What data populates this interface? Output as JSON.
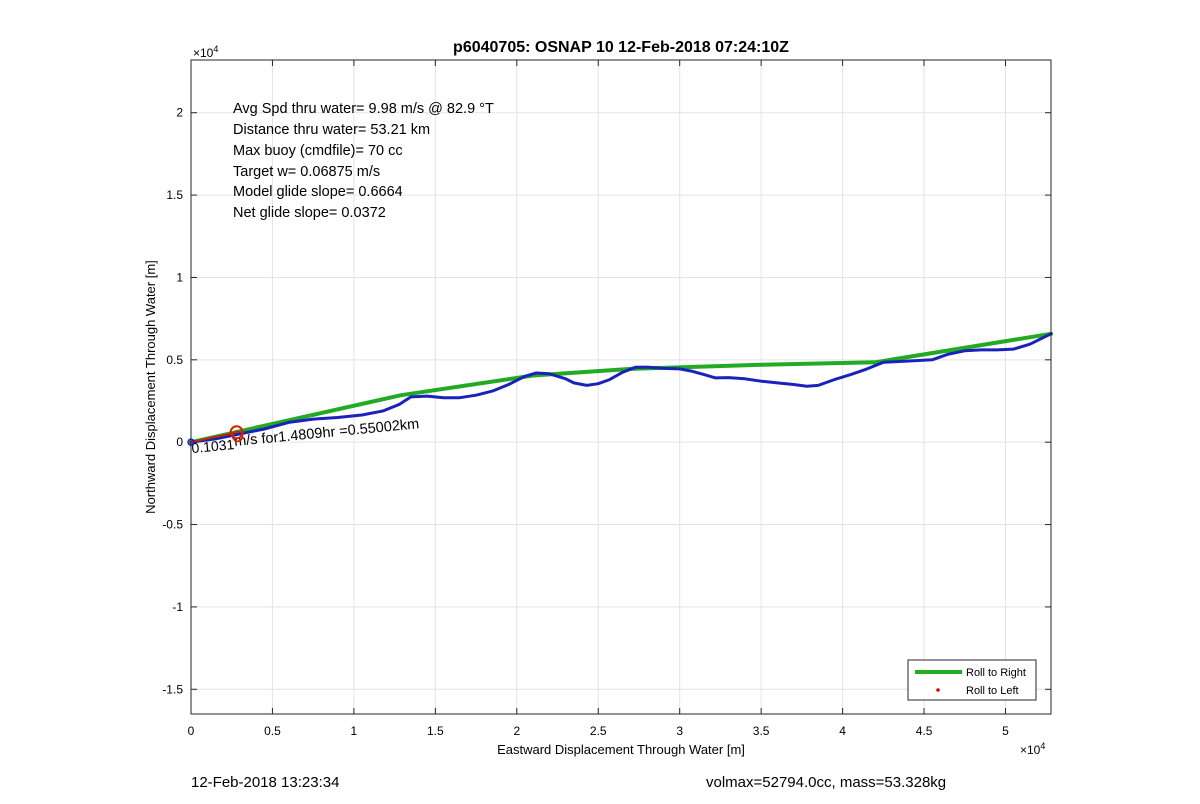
{
  "chart_data": {
    "type": "line",
    "title": "p6040705: OSNAP 10 12-Feb-2018 07:24:10Z",
    "xlabel": "Eastward Displacement Through Water [m]",
    "ylabel": "Northward Displacement Through Water [m]",
    "xlim": [
      0,
      52794
    ],
    "ylim": [
      -16500,
      23200
    ],
    "x_exponent_label": "×10",
    "x_exponent": "4",
    "y_exponent_label": "×10",
    "y_exponent": "4",
    "xticks": [
      0,
      5000,
      10000,
      15000,
      20000,
      25000,
      30000,
      35000,
      40000,
      45000,
      50000
    ],
    "xtick_labels": [
      "0",
      "0.5",
      "1",
      "1.5",
      "2",
      "2.5",
      "3",
      "3.5",
      "4",
      "4.5",
      "5"
    ],
    "yticks": [
      -15000,
      -10000,
      -5000,
      0,
      5000,
      10000,
      15000,
      20000
    ],
    "ytick_labels": [
      "-1.5",
      "-1",
      "-0.5",
      "0",
      "0.5",
      "1",
      "1.5",
      "2"
    ],
    "grid": true,
    "legend_position": "bottom-right",
    "series": [
      {
        "name": "Roll to Right",
        "color": "#22aa22",
        "x": [
          0,
          12900,
          21000,
          27000,
          35000,
          42000,
          52794
        ],
        "y": [
          0,
          2850,
          4050,
          4450,
          4700,
          4850,
          6580
        ]
      },
      {
        "name": "Roll to Left",
        "color": "#dd0000",
        "x": [],
        "y": []
      },
      {
        "color": "#1a22bb",
        "x": [
          0,
          1500,
          3000,
          4500,
          6000,
          7500,
          9000,
          10500,
          11800,
          12800,
          13500,
          14500,
          15500,
          16500,
          17500,
          18500,
          19500,
          20500,
          21200,
          22000,
          23000,
          23500,
          24300,
          25000,
          25700,
          26500,
          27300,
          28000,
          29000,
          30000,
          30800,
          31500,
          32200,
          33000,
          34000,
          35000,
          36000,
          37000,
          37800,
          38500,
          39500,
          40500,
          41500,
          42500,
          43500,
          44500,
          45500,
          46500,
          47500,
          48500,
          49500,
          50500,
          51500,
          52794
        ],
        "y": [
          0,
          200,
          500,
          800,
          1200,
          1400,
          1500,
          1650,
          1900,
          2300,
          2750,
          2800,
          2700,
          2700,
          2850,
          3100,
          3500,
          4000,
          4200,
          4150,
          3850,
          3600,
          3450,
          3550,
          3800,
          4250,
          4550,
          4560,
          4480,
          4450,
          4300,
          4100,
          3900,
          3920,
          3850,
          3700,
          3600,
          3500,
          3400,
          3450,
          3800,
          4100,
          4450,
          4850,
          4900,
          4950,
          5000,
          5350,
          5550,
          5600,
          5600,
          5650,
          5950,
          6580
        ]
      }
    ],
    "annotations": [
      "Avg Spd thru water=  9.98 m/s @  82.9 °T",
      "Distance thru water= 53.21 km",
      "Max buoy (cmdfile)= 70 cc",
      "Target w= 0.06875 m/s",
      "Model glide slope= 0.6664",
      "Net glide slope= 0.0372"
    ],
    "current_label": "m/s for1.4809hr =0.55002km",
    "current_label_overlap": "0.1031",
    "current_arrow": {
      "x": [
        0,
        2800
      ],
      "y": [
        0,
        600
      ]
    }
  },
  "footer": {
    "left": "12-Feb-2018 13:23:34",
    "right": "volmax=52794.0cc, mass=53.328kg"
  }
}
